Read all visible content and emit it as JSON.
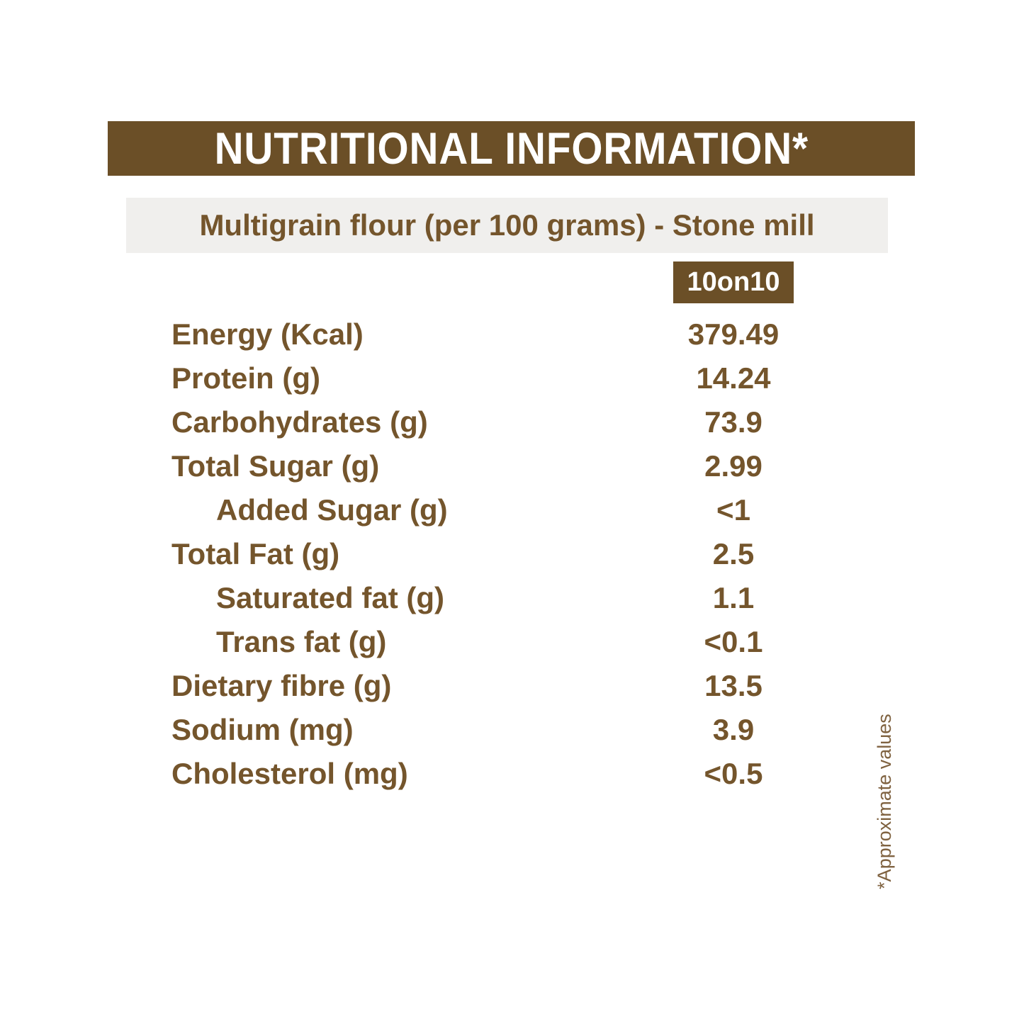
{
  "header": {
    "title": "NUTRITIONAL INFORMATION*"
  },
  "subtitle": {
    "text": "Multigrain flour (per 100 grams) - Stone mill"
  },
  "table": {
    "column_header": "10on10",
    "rows": [
      {
        "label": "Energy (Kcal)",
        "value": "379.49",
        "indent": false
      },
      {
        "label": "Protein (g)",
        "value": "14.24",
        "indent": false
      },
      {
        "label": "Carbohydrates (g)",
        "value": "73.9",
        "indent": false
      },
      {
        "label": "Total Sugar (g)",
        "value": "2.99",
        "indent": false
      },
      {
        "label": "Added Sugar (g)",
        "value": "<1",
        "indent": true
      },
      {
        "label": "Total Fat (g)",
        "value": "2.5",
        "indent": false
      },
      {
        "label": "Saturated fat (g)",
        "value": "1.1",
        "indent": true
      },
      {
        "label": "Trans fat (g)",
        "value": "<0.1",
        "indent": true
      },
      {
        "label": "Dietary fibre (g)",
        "value": "13.5",
        "indent": false
      },
      {
        "label": "Sodium (mg)",
        "value": "3.9",
        "indent": false
      },
      {
        "label": "Cholesterol (mg)",
        "value": "<0.5",
        "indent": false
      }
    ]
  },
  "footnote": {
    "text": "*Approximate values"
  },
  "colors": {
    "brown": "#6B4F27",
    "text-brown": "#74552C",
    "subtitle-bg": "#F0EFED",
    "footnote-brown": "#7F6240",
    "white": "#FFFFFF"
  }
}
